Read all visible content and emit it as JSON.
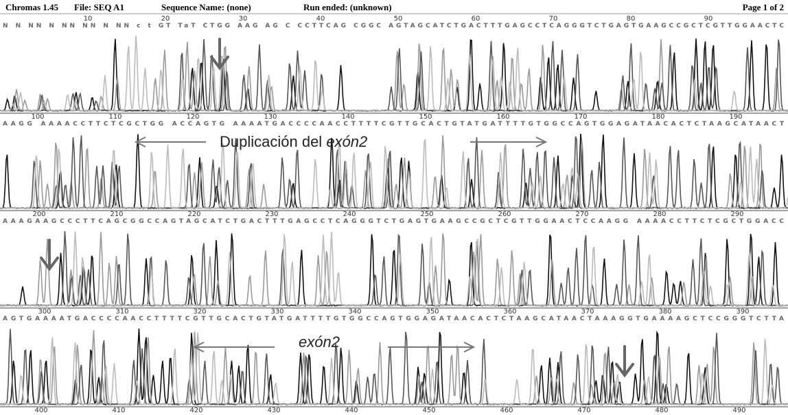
{
  "header": {
    "program": "Chromas 1.45",
    "file": "File: SEQ A1",
    "sequence_name": "Sequence Name: (none)",
    "run_ended": "Run ended: (unknown)",
    "page": "Page 1 of 2"
  },
  "panels": [
    {
      "ruler": [
        "10",
        "20",
        "30",
        "40",
        "50",
        "60",
        "70",
        "80",
        "90"
      ],
      "sequence": "N N  NN N  NN NN N  NN c t GT TaT CTGG AAG AG C CCTTCAG CGGC AGTAGCATCTGACTTTGAGCCTCAGGGTCTGAGTGAAGCCGCTCGTTGGAACTC"
    },
    {
      "ruler": [
        "100",
        "110",
        "120",
        "130",
        "140",
        "150",
        "160",
        "170",
        "180",
        "190"
      ],
      "sequence": "AAGG AAAACCTTCTCGCTGG ACCAGTG AAAATGACCCCAACCTTTTCGTTGCACTGTATGATTTTGTGGCCAGTGGAGATAACACTCTAAGCATAACT"
    },
    {
      "ruler": [
        "200",
        "210",
        "220",
        "230",
        "240",
        "250",
        "260",
        "270",
        "280",
        "290"
      ],
      "sequence": "AAAGAAGCCCTTCAGCGGCCAGTAGCATCTGACTTTGAGCCTCAGGGTCTGAGTGAAGCCGCTCGTTGGAACTCCAAGG AAAACCTTCTCGCTGGACC"
    },
    {
      "ruler": [
        "300",
        "310",
        "320",
        "330",
        "340",
        "350",
        "360",
        "370",
        "380",
        "390"
      ],
      "sequence": "AGTGAAAATGACCCCAACCTTTTCGTTGCACTGTATGATTTTGTGGCCAGTGGAGATAACACTCTAAGCATAACTAAAGGTGAAAAGCTCCGGGTCTTA"
    }
  ],
  "bottom_ruler": [
    "400",
    "410",
    "420",
    "430",
    "440",
    "450",
    "460",
    "470",
    "480",
    "490"
  ],
  "annotations": {
    "duplication_prefix": "Duplicación del ",
    "duplication_exon": "exón2",
    "exon": "exón2"
  }
}
